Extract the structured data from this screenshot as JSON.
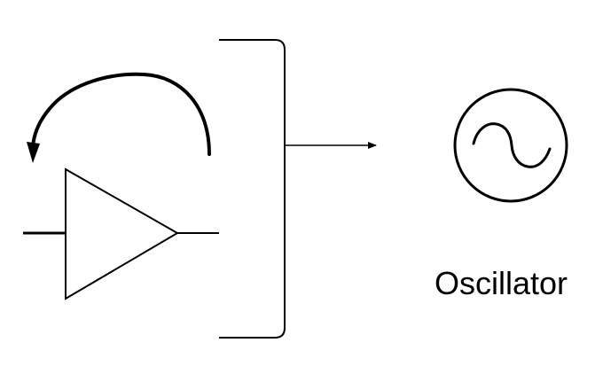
{
  "oscillator": {
    "label": "Oscillator",
    "icon": "sine-wave-icon"
  },
  "amplifier": {
    "icon": "amplifier-triangle-icon"
  },
  "feedback": {
    "icon": "feedback-arrow-icon"
  },
  "colors": {
    "stroke": "#000000",
    "background": "#ffffff"
  }
}
